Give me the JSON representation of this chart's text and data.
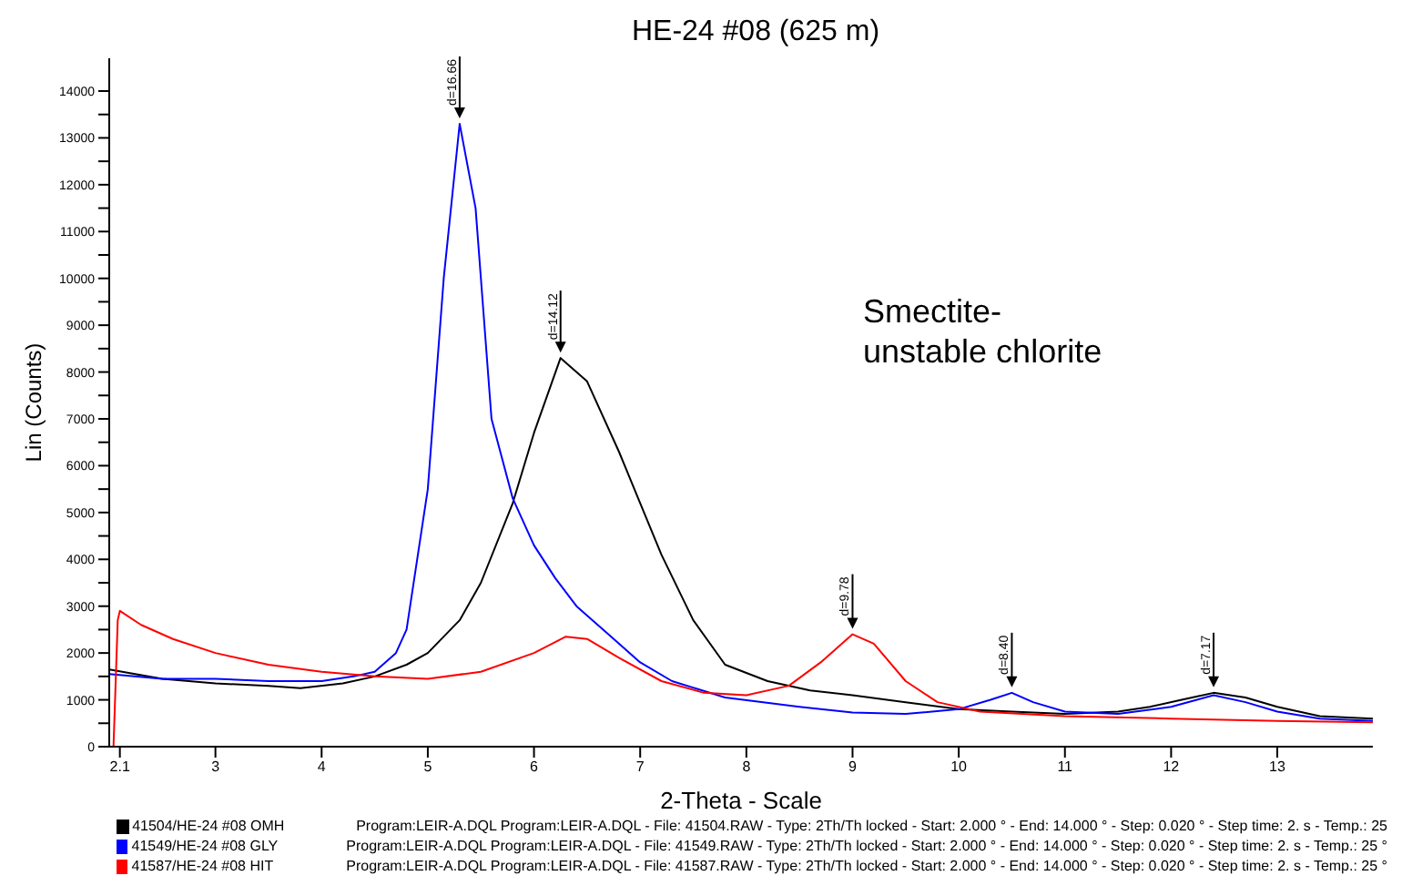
{
  "chart_data": {
    "type": "line",
    "title": "HE-24 #08 (625 m)",
    "xlabel": "2-Theta - Scale",
    "ylabel": "Lin (Counts)",
    "xlim": [
      2,
      13.9
    ],
    "xticks": [
      {
        "value": 2.1,
        "label": "2.1"
      },
      3,
      4,
      5,
      6,
      7,
      8,
      9,
      10,
      11,
      12,
      13
    ],
    "ylim": [
      0,
      14700
    ],
    "yticks": [
      0,
      {
        "value": 500,
        "label": null
      },
      1000,
      {
        "value": 1500,
        "label": null
      },
      2000,
      {
        "value": 2500,
        "label": null
      },
      3000,
      {
        "value": 3500,
        "label": null
      },
      4000,
      {
        "value": 4500,
        "label": null
      },
      5000,
      {
        "value": 5500,
        "label": null
      },
      6000,
      {
        "value": 6500,
        "label": null
      },
      7000,
      {
        "value": 7500,
        "label": null
      },
      8000,
      {
        "value": 8500,
        "label": null
      },
      9000,
      {
        "value": 9500,
        "label": null
      },
      10000,
      {
        "value": 10500,
        "label": null
      },
      11000,
      {
        "value": 11500,
        "label": null
      },
      12000,
      {
        "value": 12500,
        "label": null
      },
      13000,
      {
        "value": 13500,
        "label": null
      },
      14000
    ],
    "grid": false,
    "legend": "bottom",
    "marker": "none",
    "line_style": "solid",
    "series": [
      {
        "name": "41504/HE-24 #08 OMH",
        "color": "#000000",
        "x": [
          2.0,
          2.5,
          3.0,
          3.5,
          3.8,
          4.2,
          4.5,
          4.8,
          5.0,
          5.3,
          5.5,
          5.8,
          6.0,
          6.25,
          6.5,
          6.8,
          7.0,
          7.2,
          7.5,
          7.8,
          8.2,
          8.6,
          9.0,
          9.5,
          10.0,
          10.5,
          11.0,
          11.5,
          11.8,
          12.1,
          12.4,
          12.7,
          13.0,
          13.4,
          13.9
        ],
        "values": [
          1650,
          1450,
          1350,
          1300,
          1250,
          1350,
          1500,
          1750,
          2000,
          2700,
          3500,
          5200,
          6700,
          8300,
          7800,
          6300,
          5200,
          4100,
          2700,
          1750,
          1400,
          1200,
          1100,
          950,
          800,
          750,
          700,
          750,
          850,
          1000,
          1150,
          1050,
          850,
          650,
          600
        ]
      },
      {
        "name": "41549/HE-24 #08 GLY",
        "color": "#0000ff",
        "x": [
          2.0,
          2.5,
          3.0,
          3.5,
          4.0,
          4.3,
          4.5,
          4.7,
          4.8,
          5.0,
          5.15,
          5.3,
          5.45,
          5.6,
          5.8,
          6.0,
          6.2,
          6.4,
          6.7,
          7.0,
          7.3,
          7.8,
          8.5,
          9.0,
          9.5,
          10.0,
          10.3,
          10.5,
          10.7,
          11.0,
          11.5,
          12.0,
          12.4,
          12.7,
          13.0,
          13.4,
          13.9
        ],
        "values": [
          1550,
          1450,
          1450,
          1400,
          1400,
          1500,
          1600,
          2000,
          2500,
          5500,
          10000,
          13300,
          11500,
          7000,
          5300,
          4300,
          3600,
          3000,
          2400,
          1800,
          1400,
          1050,
          850,
          730,
          700,
          800,
          1000,
          1150,
          950,
          750,
          700,
          850,
          1100,
          950,
          750,
          600,
          550
        ]
      },
      {
        "name": "41587/HE-24 #08 HIT",
        "color": "#ff0000",
        "x": [
          2.04,
          2.08,
          2.1,
          2.3,
          2.6,
          3.0,
          3.5,
          4.0,
          4.5,
          5.0,
          5.5,
          6.0,
          6.3,
          6.5,
          6.8,
          7.2,
          7.6,
          8.0,
          8.4,
          8.7,
          9.0,
          9.2,
          9.5,
          9.8,
          10.2,
          11.0,
          12.0,
          13.0,
          13.9
        ],
        "values": [
          0,
          2700,
          2900,
          2600,
          2300,
          2000,
          1750,
          1600,
          1500,
          1450,
          1600,
          2000,
          2350,
          2300,
          1900,
          1400,
          1150,
          1100,
          1300,
          1800,
          2400,
          2200,
          1400,
          950,
          750,
          650,
          600,
          550,
          520
        ]
      }
    ],
    "annotations": [
      {
        "text": "d=16.66",
        "x": 5.3,
        "y": 13300
      },
      {
        "text": "d=14.12",
        "x": 6.25,
        "y": 8300
      },
      {
        "text": "d=9.78",
        "x": 9.0,
        "y": 2400
      },
      {
        "text": "d=8.40",
        "x": 10.5,
        "y": 1150
      },
      {
        "text": "d=7.17",
        "x": 12.4,
        "y": 1150
      },
      "Smectite-\nunstable chlorite",
      "Program:LEIR-A.DQL Program:LEIR-A.DQL - File: 41504.RAW - Type: 2Th/Th locked - Start: 2.000 ° - End: 14.000 ° - Step: 0.020 ° - Step time: 2. s - Temp.: 25",
      "Program:LEIR-A.DQL Program:LEIR-A.DQL - File: 41549.RAW - Type: 2Th/Th locked - Start: 2.000 ° - End: 14.000 ° - Step: 0.020 ° - Step time: 2. s - Temp.: 25 °",
      "Program:LEIR-A.DQL Program:LEIR-A.DQL - File: 41587.RAW - Type: 2Th/Th locked - Start: 2.000 ° - End: 14.000 ° - Step: 0.020 ° - Step time: 2. s - Temp.: 25 °"
    ]
  }
}
